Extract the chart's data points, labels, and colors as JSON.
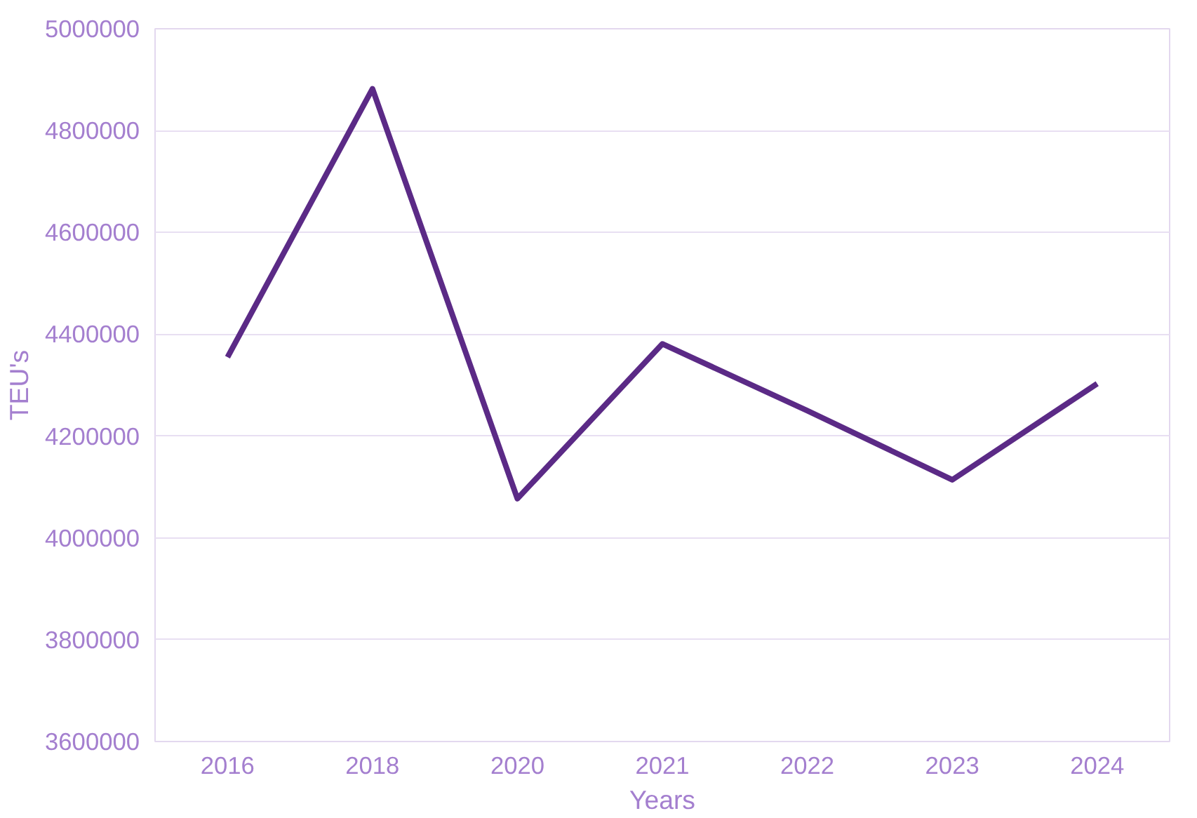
{
  "chart_data": {
    "type": "line",
    "xlabel": "Years",
    "ylabel": "TEU's",
    "categories": [
      "2016",
      "2018",
      "2020",
      "2021",
      "2022",
      "2023",
      "2024"
    ],
    "series": [
      {
        "color": "#5b2a86",
        "values": [
          4355000,
          4882000,
          4077000,
          4381000,
          4250000,
          4114000,
          4303000
        ]
      }
    ],
    "ylim": [
      3600000,
      5000000
    ],
    "yticks": [
      3600000,
      3800000,
      4000000,
      4200000,
      4400000,
      4600000,
      4800000,
      5000000
    ],
    "grid": "y",
    "marker": "none",
    "line_style": "solid"
  }
}
